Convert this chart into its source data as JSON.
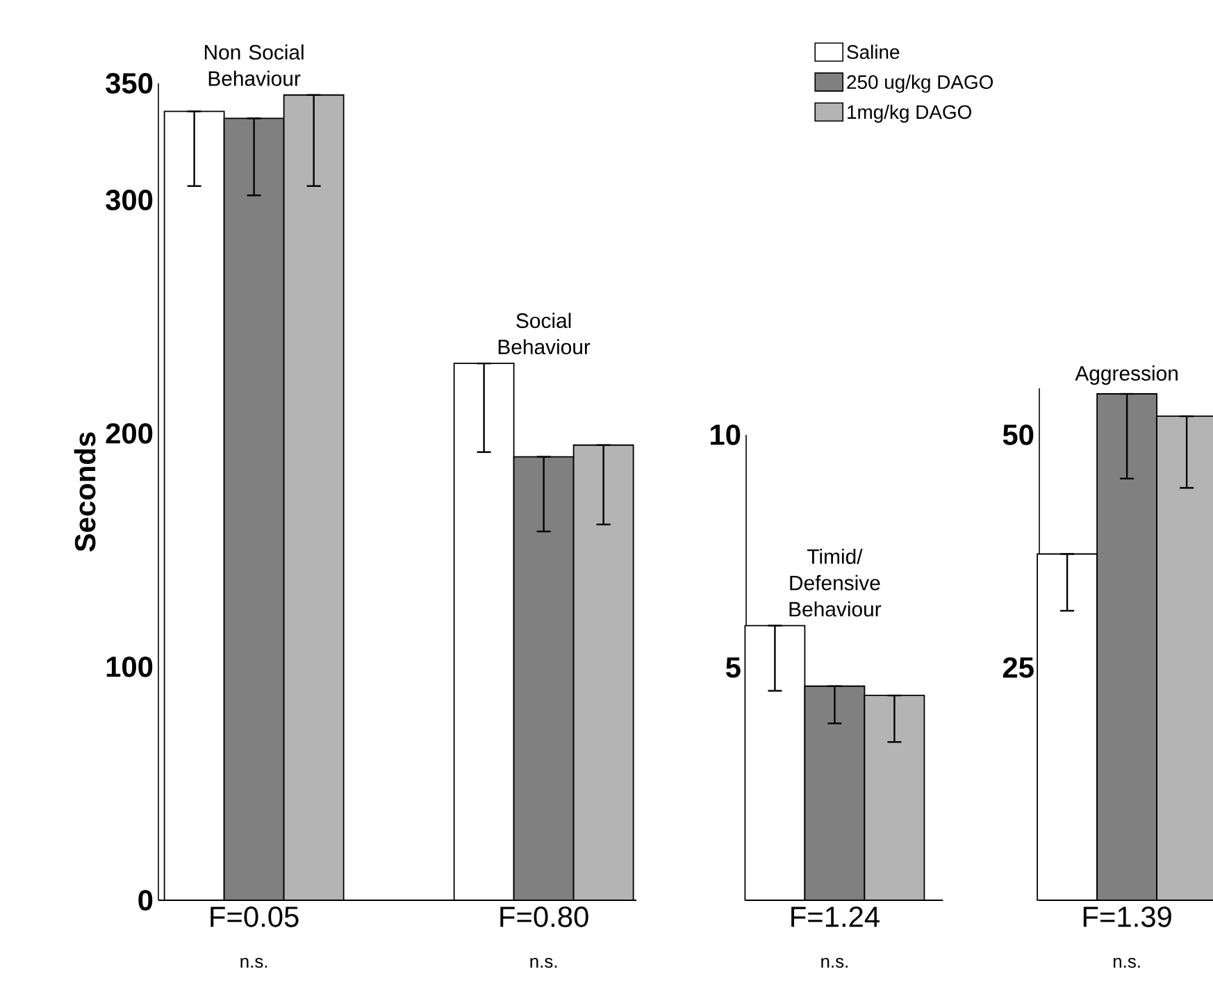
{
  "chart_data": [
    {
      "type": "bar",
      "ylabel": "Seconds",
      "categories": [
        "F=0.05",
        "F=0.80"
      ],
      "legend": "top right",
      "ylim": [
        0,
        350
      ],
      "yticks": [
        0,
        100,
        200,
        300,
        350
      ],
      "annotations": [
        "Non Social Behaviour",
        "Social Behaviour",
        "n.s.",
        "n.s."
      ],
      "series": [
        {
          "name": "Saline",
          "color": "#ffffff",
          "values": [
            338,
            230
          ],
          "errors": [
            [
              306,
              338
            ],
            [
              192,
              230
            ]
          ]
        },
        {
          "name": "250 ug/kg DAGO",
          "color": "#808080",
          "values": [
            335,
            190
          ],
          "errors": [
            [
              302,
              335
            ],
            [
              158,
              190
            ]
          ]
        },
        {
          "name": "1mg/kg DAGO",
          "color": "#b4b4b4",
          "values": [
            345,
            195
          ],
          "errors": [
            [
              306,
              345
            ],
            [
              161,
              195
            ]
          ]
        }
      ]
    },
    {
      "type": "bar",
      "categories": [
        "F=1.24"
      ],
      "ylim": [
        0,
        10
      ],
      "yticks": [
        5,
        10
      ],
      "annotations": [
        "Timid/ Defensive Behaviour",
        "n.s."
      ],
      "series": [
        {
          "color": "#ffffff",
          "values": [
            5.9
          ],
          "errors": [
            [
              4.5,
              5.9
            ]
          ]
        },
        {
          "color": "#808080",
          "values": [
            4.6
          ],
          "errors": [
            [
              3.8,
              4.6
            ]
          ]
        },
        {
          "color": "#b4b4b4",
          "values": [
            4.4
          ],
          "errors": [
            [
              3.4,
              4.4
            ]
          ]
        }
      ]
    },
    {
      "type": "bar",
      "categories": [
        "F=1.39"
      ],
      "ylim": [
        0,
        55
      ],
      "yticks": [
        25,
        50
      ],
      "annotations": [
        "Aggression",
        "n.s."
      ],
      "series": [
        {
          "color": "#ffffff",
          "values": [
            37.2
          ],
          "errors": [
            [
              31.1,
              37.2
            ]
          ]
        },
        {
          "color": "#808080",
          "values": [
            54.4
          ],
          "errors": [
            [
              45.3,
              54.4
            ]
          ]
        },
        {
          "color": "#b4b4b4",
          "values": [
            52.0
          ],
          "errors": [
            [
              44.3,
              52.0
            ]
          ]
        }
      ]
    }
  ]
}
